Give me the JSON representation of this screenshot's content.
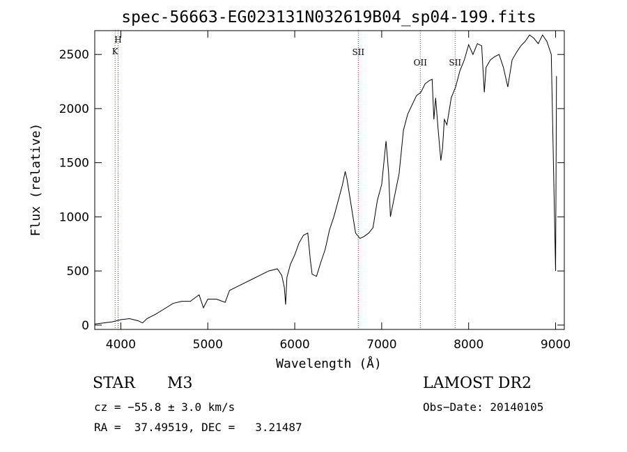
{
  "chart_data": {
    "type": "line",
    "title": "spec-56663-EG023131N032619B04_sp04-199.fits",
    "xlabel": "Wavelength (Å)",
    "ylabel": "Flux (relative)",
    "xlim": [
      3700,
      9100
    ],
    "ylim": [
      -40,
      2720
    ],
    "xticks": [
      4000,
      5000,
      6000,
      7000,
      8000,
      9000
    ],
    "yticks": [
      0,
      500,
      1000,
      1500,
      2000,
      2500
    ],
    "grid": false,
    "series": [
      {
        "color": "#000000",
        "x": [
          3700,
          3800,
          3900,
          3950,
          4000,
          4100,
          4200,
          4250,
          4300,
          4400,
          4500,
          4600,
          4700,
          4800,
          4850,
          4900,
          4950,
          5000,
          5100,
          5200,
          5250,
          5300,
          5400,
          5500,
          5600,
          5700,
          5800,
          5850,
          5880,
          5895,
          5910,
          5950,
          6000,
          6050,
          6100,
          6150,
          6180,
          6200,
          6250,
          6300,
          6350,
          6400,
          6450,
          6500,
          6550,
          6580,
          6600,
          6650,
          6700,
          6750,
          6800,
          6850,
          6900,
          6950,
          7000,
          7050,
          7060,
          7080,
          7100,
          7150,
          7200,
          7250,
          7300,
          7400,
          7450,
          7500,
          7550,
          7580,
          7600,
          7620,
          7650,
          7680,
          7700,
          7720,
          7750,
          7800,
          7850,
          7900,
          7950,
          8000,
          8050,
          8100,
          8150,
          8180,
          8200,
          8250,
          8300,
          8350,
          8400,
          8450,
          8500,
          8550,
          8600,
          8650,
          8700,
          8750,
          8800,
          8850,
          8900,
          8950,
          9000,
          9010
        ],
        "y": [
          10,
          20,
          30,
          40,
          50,
          60,
          40,
          20,
          60,
          100,
          150,
          200,
          220,
          220,
          250,
          280,
          160,
          240,
          240,
          210,
          320,
          340,
          380,
          420,
          460,
          500,
          520,
          460,
          350,
          190,
          440,
          560,
          650,
          760,
          830,
          850,
          600,
          470,
          450,
          580,
          700,
          880,
          1000,
          1150,
          1300,
          1420,
          1350,
          1100,
          850,
          800,
          820,
          850,
          900,
          1150,
          1300,
          1700,
          1600,
          1400,
          1000,
          1200,
          1400,
          1800,
          1950,
          2120,
          2150,
          2230,
          2260,
          2270,
          1900,
          2100,
          1800,
          1520,
          1640,
          1900,
          1850,
          2100,
          2200,
          2350,
          2450,
          2590,
          2500,
          2600,
          2580,
          2150,
          2380,
          2450,
          2480,
          2500,
          2380,
          2200,
          2450,
          2520,
          2580,
          2620,
          2680,
          2650,
          2600,
          2680,
          2620,
          2500,
          500,
          2300
        ]
      }
    ],
    "lines": [
      {
        "label": "H",
        "x": 3968
      },
      {
        "label": "K",
        "x": 3934
      },
      {
        "label": "SII",
        "x": 6731
      },
      {
        "label": "OII",
        "x": 7444
      },
      {
        "label": "SII",
        "x": 7844
      }
    ]
  },
  "info": {
    "object_type": "STAR",
    "subclass": "M3",
    "survey": "LAMOST DR2",
    "cz": "cz = −55.8 ± 3.0 km/s",
    "obs_date": "Obs−Date: 20140105",
    "coords": "RA =  37.49519, DEC =   3.21487"
  }
}
